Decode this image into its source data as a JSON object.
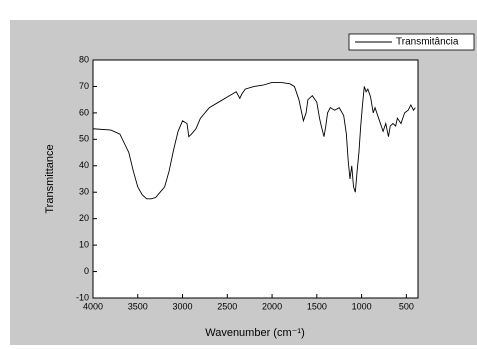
{
  "chart_data": {
    "type": "line",
    "x_label": "Wavenumber (cm⁻¹)",
    "y_label": "Transmittance",
    "xlim": [
      4000,
      370
    ],
    "xticks": [
      4000,
      3500,
      3000,
      2500,
      2000,
      1500,
      1000,
      500
    ],
    "ylim": [
      -10,
      80
    ],
    "yticks": [
      -10,
      0,
      10,
      20,
      30,
      40,
      50,
      60,
      70,
      80
    ],
    "legend": "top-right",
    "x": [
      4000,
      3800,
      3700,
      3600,
      3550,
      3500,
      3450,
      3400,
      3350,
      3300,
      3250,
      3200,
      3150,
      3100,
      3050,
      3000,
      2950,
      2930,
      2900,
      2850,
      2800,
      2700,
      2600,
      2500,
      2400,
      2360,
      2340,
      2300,
      2200,
      2100,
      2000,
      1900,
      1800,
      1750,
      1700,
      1650,
      1620,
      1600,
      1550,
      1500,
      1470,
      1450,
      1420,
      1400,
      1380,
      1350,
      1300,
      1250,
      1200,
      1170,
      1150,
      1130,
      1110,
      1090,
      1070,
      1050,
      1030,
      1010,
      990,
      970,
      950,
      930,
      900,
      870,
      850,
      800,
      760,
      730,
      700,
      680,
      650,
      620,
      600,
      560,
      520,
      480,
      450,
      420,
      400
    ],
    "series": [
      {
        "name": "Transmitância",
        "color": "#000000",
        "values": [
          54,
          53.5,
          52,
          45,
          38,
          32,
          29,
          27.5,
          27.5,
          28,
          30,
          32,
          38,
          46,
          53,
          57,
          56,
          51,
          52,
          54,
          58,
          62,
          64,
          66,
          68,
          65.5,
          67,
          69,
          70,
          70.5,
          71.5,
          71.5,
          71,
          70,
          65,
          57,
          60,
          65,
          66.5,
          64,
          58,
          55,
          51,
          55,
          60,
          62,
          61,
          62,
          59,
          52,
          42,
          35,
          40,
          32,
          30,
          38,
          45,
          55,
          63,
          70,
          68,
          69,
          66,
          60,
          62,
          57,
          53,
          56,
          51,
          55,
          56,
          55,
          58,
          56,
          60,
          61,
          63,
          61,
          62
        ]
      }
    ]
  }
}
